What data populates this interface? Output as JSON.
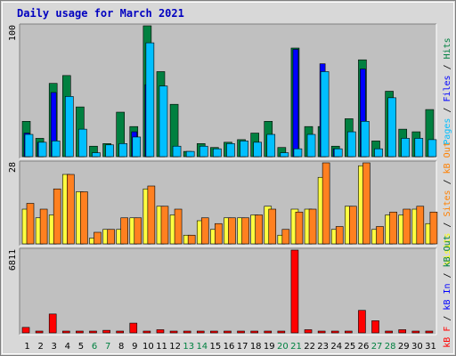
{
  "chart_data": {
    "type": "bar",
    "title": "Daily usage for March 2021",
    "days": [
      "1",
      "2",
      "3",
      "4",
      "5",
      "6",
      "7",
      "8",
      "9",
      "10",
      "11",
      "12",
      "13",
      "14",
      "15",
      "16",
      "17",
      "18",
      "19",
      "20",
      "21",
      "22",
      "23",
      "24",
      "25",
      "26",
      "27",
      "28",
      "29",
      "30",
      "31"
    ],
    "weekend_days": [
      "6",
      "7",
      "13",
      "14",
      "20",
      "21",
      "27",
      "28"
    ],
    "panels": [
      {
        "id": "top",
        "scale_label": "100",
        "ymax": 100,
        "legend": [
          {
            "name": "Pages",
            "color": "#00bfff"
          },
          {
            "name": "Files",
            "color": "#0000ff"
          },
          {
            "name": "Hits",
            "color": "#008040"
          }
        ],
        "legend_separator": " / ",
        "series": [
          {
            "name": "Hits",
            "color": "#008040",
            "values": [
              27,
              14,
              56,
              62,
              38,
              8,
              10,
              34,
              23,
              100,
              65,
              40,
              4,
              10,
              7,
              11,
              13,
              18,
              27,
              7,
              83,
              23,
              23,
              8,
              29,
              74,
              12,
              50,
              21,
              19,
              36
            ]
          },
          {
            "name": "Files",
            "color": "#0000ff",
            "values": [
              18,
              11,
              49,
              0,
              0,
              0,
              0,
              0,
              19,
              55,
              0,
              0,
              0,
              0,
              0,
              0,
              0,
              0,
              0,
              0,
              82,
              0,
              71,
              6,
              0,
              67,
              0,
              0,
              0,
              0,
              0
            ]
          },
          {
            "name": "Pages",
            "color": "#00bfff",
            "values": [
              17,
              11,
              12,
              46,
              21,
              3,
              9,
              10,
              15,
              87,
              54,
              8,
              4,
              8,
              6,
              10,
              12,
              11,
              17,
              3,
              6,
              17,
              65,
              6,
              19,
              27,
              6,
              45,
              14,
              14,
              13
            ]
          }
        ]
      },
      {
        "id": "middle",
        "scale_label": "28",
        "ymax": 28,
        "legend": [
          {
            "name": "Visits",
            "color": "#ffff00"
          },
          {
            "name": "Sites",
            "color": "#ff8000"
          },
          {
            "name": "KBytes Out",
            "color": "#ff8000"
          }
        ],
        "legend_labels": [
          "Visits",
          "Sites",
          "kB Out"
        ],
        "legend_separator": " / ",
        "series": [
          {
            "name": "Visits",
            "color": "#ffff40",
            "values": [
              12,
              9,
              10,
              24,
              18,
              2,
              5,
              5,
              9,
              19,
              13,
              10,
              3,
              8,
              5,
              9,
              9,
              10,
              13,
              3,
              12,
              12,
              23,
              5,
              13,
              27,
              5,
              10,
              10,
              12,
              7
            ]
          },
          {
            "name": "Sites",
            "color": "#ff8020",
            "values": [
              14,
              12,
              19,
              24,
              18,
              4,
              5,
              9,
              9,
              20,
              13,
              12,
              3,
              9,
              7,
              9,
              9,
              10,
              12,
              5,
              11,
              12,
              28,
              6,
              13,
              28,
              6,
              11,
              12,
              13,
              11
            ]
          }
        ]
      },
      {
        "id": "bottom",
        "scale_label": "6811",
        "ymax": 6811,
        "legend": [
          {
            "name": "KBytes F",
            "color": "#ff0000"
          },
          {
            "name": "KBytes In",
            "color": "#0000ff"
          },
          {
            "name": "KBytes Out",
            "color": "#008040"
          }
        ],
        "legend_labels": [
          "kB F",
          "kB In",
          "kB Out"
        ],
        "legend_separator": " / ",
        "series": [
          {
            "name": "KBytes F",
            "color": "#ff0000",
            "values": [
              450,
              80,
              1550,
              80,
              70,
              60,
              210,
              60,
              800,
              110,
              260,
              70,
              60,
              60,
              60,
              70,
              60,
              60,
              70,
              70,
              6811,
              260,
              120,
              70,
              60,
              1850,
              1000,
              60,
              260,
              60,
              80
            ]
          }
        ]
      }
    ]
  }
}
